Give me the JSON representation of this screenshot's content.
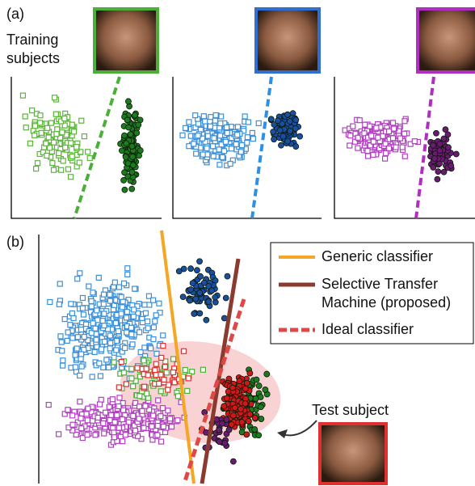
{
  "panel_a": {
    "label": "(a)",
    "caption": "Training subjects"
  },
  "panel_b": {
    "label": "(b)",
    "legend": [
      "Generic classifier",
      "Selective Transfer Machine (proposed)",
      "Ideal classifier"
    ],
    "test_caption": "Test subject"
  }
}
